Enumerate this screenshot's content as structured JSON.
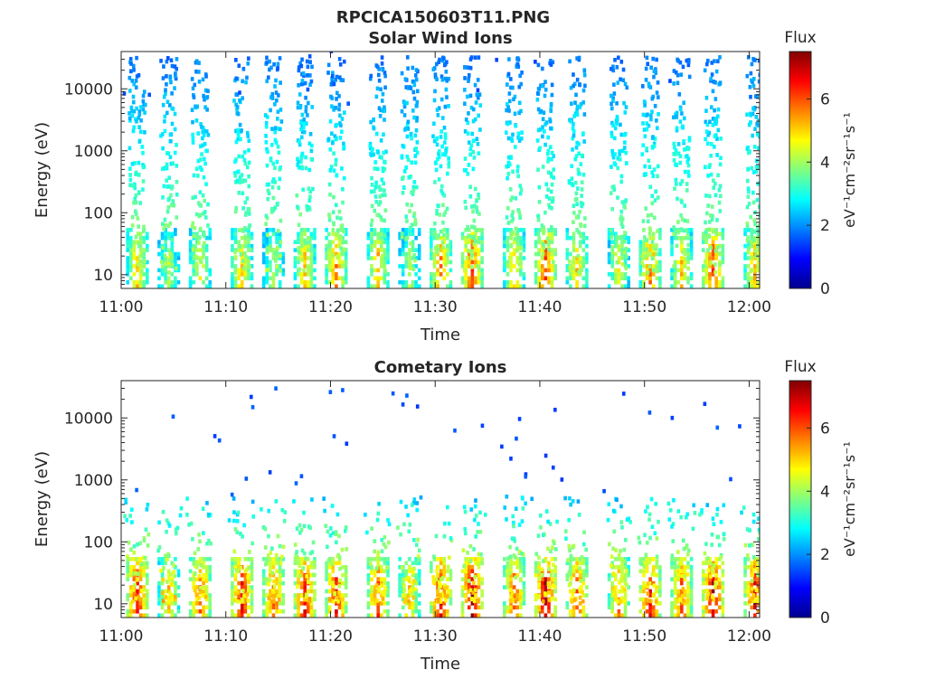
{
  "figure": {
    "title": "RPCICA150603T11.PNG"
  },
  "colorscale": {
    "name": "jet",
    "stops": [
      "#00008f",
      "#0000ff",
      "#0080ff",
      "#00ffff",
      "#80ff80",
      "#ffff00",
      "#ff8000",
      "#ff0000",
      "#800000"
    ]
  },
  "chart_data": [
    {
      "type": "heatmap",
      "title": "Solar Wind Ions",
      "xlabel": "Time",
      "ylabel": "Energy (eV)",
      "y_scale": "log",
      "ylim": [
        6,
        40000
      ],
      "xlim": [
        "11:00",
        "12:01"
      ],
      "x_ticks": [
        "11:00",
        "11:10",
        "11:20",
        "11:30",
        "11:40",
        "11:50",
        "12:00"
      ],
      "y_ticks": [
        "10",
        "100",
        "1000",
        "10000"
      ],
      "colorbar": {
        "label": "Flux",
        "units": "eV⁻¹cm⁻²sr⁻¹s⁻¹",
        "range": [
          0,
          7.5
        ],
        "ticks": [
          "0",
          "2",
          "4",
          "6"
        ]
      },
      "sweep_period_minutes": 3.2,
      "sweep_peaks": [
        {
          "time": "11:01",
          "peak_flux": 5.5
        },
        {
          "time": "11:04",
          "peak_flux": 4.5
        },
        {
          "time": "11:07",
          "peak_flux": 5.0
        },
        {
          "time": "11:11",
          "peak_flux": 5.5
        },
        {
          "time": "11:14",
          "peak_flux": 4.5
        },
        {
          "time": "11:17",
          "peak_flux": 5.5
        },
        {
          "time": "11:20",
          "peak_flux": 6.0
        },
        {
          "time": "11:24",
          "peak_flux": 5.5
        },
        {
          "time": "11:27",
          "peak_flux": 4.5
        },
        {
          "time": "11:30",
          "peak_flux": 6.0
        },
        {
          "time": "11:33",
          "peak_flux": 6.5
        },
        {
          "time": "11:37",
          "peak_flux": 5.5
        },
        {
          "time": "11:40",
          "peak_flux": 6.5
        },
        {
          "time": "11:43",
          "peak_flux": 5.5
        },
        {
          "time": "11:47",
          "peak_flux": 5.0
        },
        {
          "time": "11:50",
          "peak_flux": 6.0
        },
        {
          "time": "11:53",
          "peak_flux": 5.5
        },
        {
          "time": "11:56",
          "peak_flux": 6.5
        },
        {
          "time": "12:00",
          "peak_flux": 5.5
        }
      ],
      "band_energy_range_eV": [
        10,
        30000
      ],
      "band_flux_at_high_energy": 1.5
    },
    {
      "type": "heatmap",
      "title": "Cometary Ions",
      "xlabel": "Time",
      "ylabel": "Energy (eV)",
      "y_scale": "log",
      "ylim": [
        6,
        40000
      ],
      "xlim": [
        "11:00",
        "12:01"
      ],
      "x_ticks": [
        "11:00",
        "11:10",
        "11:20",
        "11:30",
        "11:40",
        "11:50",
        "12:00"
      ],
      "y_ticks": [
        "10",
        "100",
        "1000",
        "10000"
      ],
      "colorbar": {
        "label": "Flux",
        "units": "eV⁻¹cm⁻²sr⁻¹s⁻¹",
        "range": [
          0,
          7.5
        ],
        "ticks": [
          "0",
          "2",
          "4",
          "6"
        ]
      },
      "sweep_period_minutes": 3.2,
      "sweep_peaks": [
        {
          "time": "11:01",
          "peak_flux": 7.0
        },
        {
          "time": "11:04",
          "peak_flux": 5.5
        },
        {
          "time": "11:07",
          "peak_flux": 6.5
        },
        {
          "time": "11:11",
          "peak_flux": 7.0
        },
        {
          "time": "11:14",
          "peak_flux": 6.5
        },
        {
          "time": "11:17",
          "peak_flux": 7.0
        },
        {
          "time": "11:20",
          "peak_flux": 7.0
        },
        {
          "time": "11:24",
          "peak_flux": 6.5
        },
        {
          "time": "11:27",
          "peak_flux": 5.5
        },
        {
          "time": "11:30",
          "peak_flux": 7.0
        },
        {
          "time": "11:33",
          "peak_flux": 7.5
        },
        {
          "time": "11:37",
          "peak_flux": 6.5
        },
        {
          "time": "11:40",
          "peak_flux": 7.5
        },
        {
          "time": "11:43",
          "peak_flux": 6.5
        },
        {
          "time": "11:47",
          "peak_flux": 6.0
        },
        {
          "time": "11:50",
          "peak_flux": 7.0
        },
        {
          "time": "11:53",
          "peak_flux": 6.5
        },
        {
          "time": "11:56",
          "peak_flux": 7.5
        },
        {
          "time": "12:00",
          "peak_flux": 7.0
        }
      ],
      "band_energy_range_eV": [
        10,
        500
      ],
      "band_flux_at_high_energy": 2.0
    }
  ]
}
